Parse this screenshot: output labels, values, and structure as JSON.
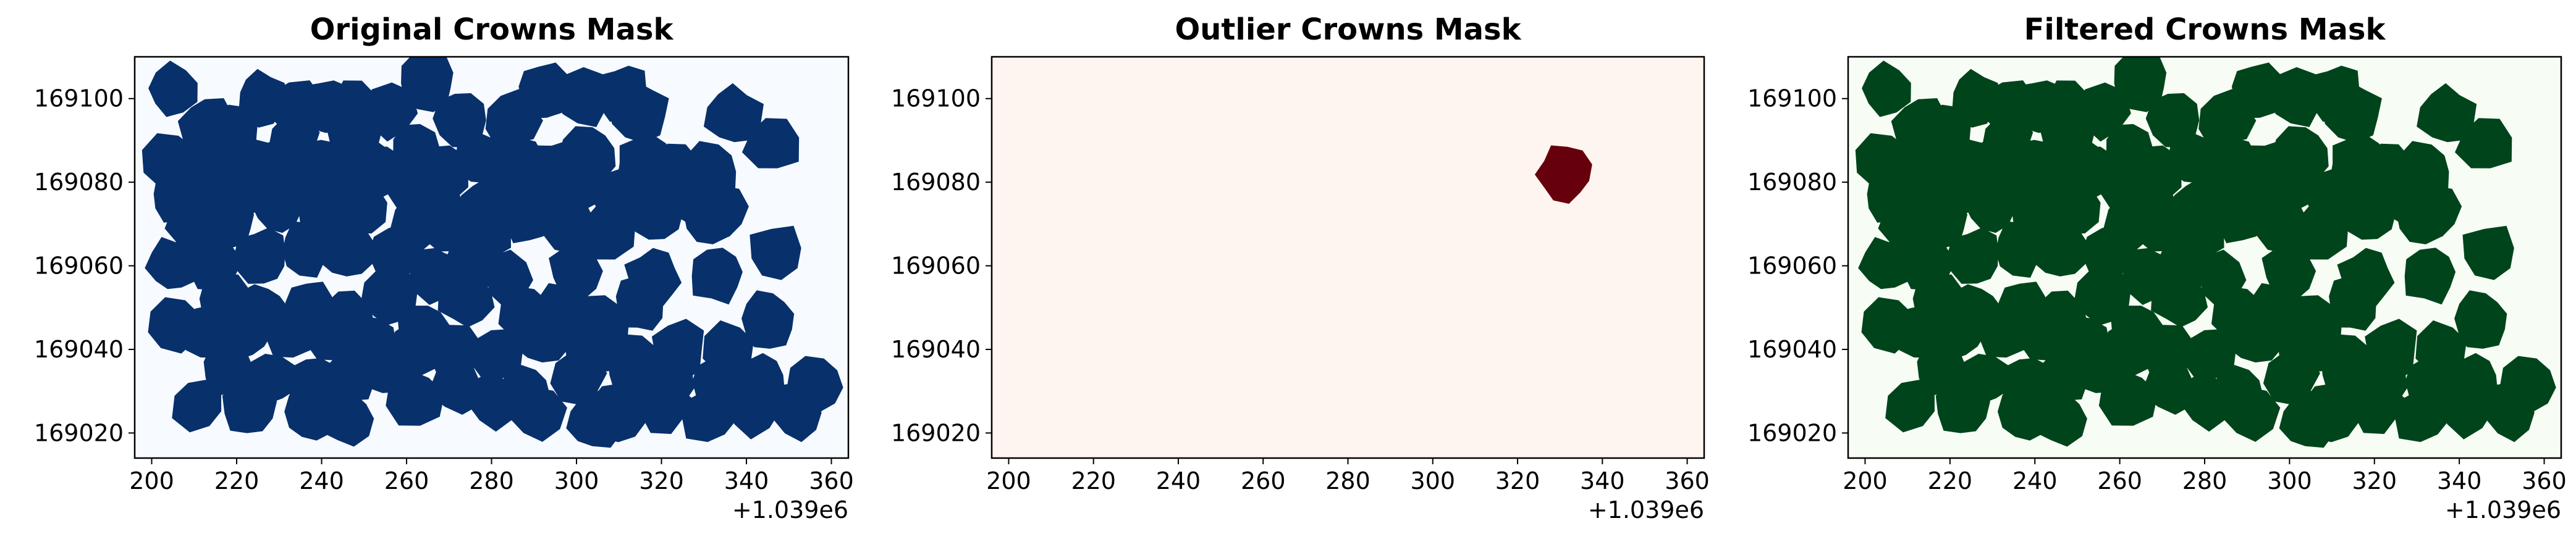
{
  "chart_data": [
    {
      "type": "heatmap",
      "title": "Original Crowns Mask",
      "colormap": "Blues",
      "background_color": "#f7fbff",
      "mask_color": "#08306b",
      "xlabel": "",
      "ylabel": "",
      "xlim": [
        196,
        364
      ],
      "ylim": [
        169014,
        169110
      ],
      "x_ticks": [
        200,
        220,
        240,
        260,
        280,
        300,
        320,
        340,
        360
      ],
      "y_ticks": [
        169020,
        169040,
        169060,
        169080,
        169100
      ],
      "x_offset_label": "+1.039e6",
      "crowns": [
        [
          205,
          169102
        ],
        [
          213,
          169094
        ],
        [
          219,
          169092
        ],
        [
          226,
          169100
        ],
        [
          234,
          169098
        ],
        [
          241,
          169098
        ],
        [
          248,
          169098
        ],
        [
          256,
          169097
        ],
        [
          265,
          169104
        ],
        [
          273,
          169095
        ],
        [
          285,
          169095
        ],
        [
          292,
          169102
        ],
        [
          302,
          169100
        ],
        [
          311,
          169101
        ],
        [
          315,
          169097
        ],
        [
          337,
          169096
        ],
        [
          346,
          169089
        ],
        [
          204,
          169085
        ],
        [
          212,
          169085
        ],
        [
          219,
          169084
        ],
        [
          226,
          169083
        ],
        [
          233,
          169090
        ],
        [
          240,
          169084
        ],
        [
          247,
          169092
        ],
        [
          254,
          169083
        ],
        [
          262,
          169088
        ],
        [
          269,
          169082
        ],
        [
          277,
          169086
        ],
        [
          287,
          169085
        ],
        [
          295,
          169083
        ],
        [
          303,
          169087
        ],
        [
          316,
          169084
        ],
        [
          323,
          169083
        ],
        [
          332,
          169083
        ],
        [
          206,
          169077
        ],
        [
          214,
          169077
        ],
        [
          222,
          169079
        ],
        [
          230,
          169084
        ],
        [
          238,
          169079
        ],
        [
          245,
          169081
        ],
        [
          252,
          169083
        ],
        [
          260,
          169081
        ],
        [
          268,
          169074
        ],
        [
          278,
          169074
        ],
        [
          285,
          169079
        ],
        [
          293,
          169079
        ],
        [
          302,
          169080
        ],
        [
          310,
          169076
        ],
        [
          318,
          169076
        ],
        [
          327,
          169077
        ],
        [
          334,
          169073
        ],
        [
          210,
          169069
        ],
        [
          218,
          169070
        ],
        [
          230,
          169074
        ],
        [
          240,
          169072
        ],
        [
          250,
          169073
        ],
        [
          262,
          169070
        ],
        [
          270,
          169070
        ],
        [
          279,
          169068
        ],
        [
          289,
          169072
        ],
        [
          299,
          169069
        ],
        [
          307,
          169068
        ],
        [
          318,
          169073
        ],
        [
          331,
          169071
        ],
        [
          205,
          169060
        ],
        [
          215,
          169060
        ],
        [
          226,
          169062
        ],
        [
          236,
          169064
        ],
        [
          246,
          169064
        ],
        [
          258,
          169063
        ],
        [
          266,
          169058
        ],
        [
          276,
          169061
        ],
        [
          284,
          169057
        ],
        [
          300,
          169059
        ],
        [
          318,
          169057
        ],
        [
          333,
          169058
        ],
        [
          347,
          169063
        ],
        [
          217,
          169052
        ],
        [
          226,
          169049
        ],
        [
          237,
          169050
        ],
        [
          246,
          169047
        ],
        [
          256,
          169053
        ],
        [
          264,
          169045
        ],
        [
          274,
          169052
        ],
        [
          288,
          169049
        ],
        [
          297,
          169049
        ],
        [
          306,
          169046
        ],
        [
          315,
          169051
        ],
        [
          205,
          169046
        ],
        [
          212,
          169044
        ],
        [
          222,
          169044
        ],
        [
          232,
          169044
        ],
        [
          242,
          169043
        ],
        [
          251,
          169041
        ],
        [
          262,
          169040
        ],
        [
          271,
          169040
        ],
        [
          281,
          169039
        ],
        [
          292,
          169043
        ],
        [
          303,
          169040
        ],
        [
          313,
          169036
        ],
        [
          324,
          169040
        ],
        [
          336,
          169040
        ],
        [
          345,
          169047
        ],
        [
          218,
          169035
        ],
        [
          228,
          169033
        ],
        [
          238,
          169032
        ],
        [
          247,
          169034
        ],
        [
          256,
          169035
        ],
        [
          272,
          169031
        ],
        [
          288,
          169030
        ],
        [
          300,
          169033
        ],
        [
          314,
          169028
        ],
        [
          322,
          169032
        ],
        [
          333,
          169032
        ],
        [
          343,
          169032
        ],
        [
          211,
          169027
        ],
        [
          223,
          169026
        ],
        [
          238,
          169025
        ],
        [
          246,
          169024
        ],
        [
          262,
          169028
        ],
        [
          280,
          169028
        ],
        [
          291,
          169025
        ],
        [
          304,
          169023
        ],
        [
          310,
          169025
        ],
        [
          320,
          169027
        ],
        [
          331,
          169024
        ],
        [
          342,
          169026
        ],
        [
          352,
          169025
        ],
        [
          356,
          169031
        ]
      ]
    },
    {
      "type": "heatmap",
      "title": "Outlier Crowns Mask",
      "colormap": "Reds",
      "background_color": "#fff5f0",
      "mask_color": "#67000d",
      "xlabel": "",
      "ylabel": "",
      "xlim": [
        196,
        364
      ],
      "ylim": [
        169014,
        169110
      ],
      "x_ticks": [
        200,
        220,
        240,
        260,
        280,
        300,
        320,
        340,
        360
      ],
      "y_ticks": [
        169020,
        169040,
        169060,
        169080,
        169100
      ],
      "x_offset_label": "+1.039e6",
      "crowns": [
        [
          331,
          169082
        ]
      ]
    },
    {
      "type": "heatmap",
      "title": "Filtered Crowns Mask",
      "colormap": "Greens",
      "background_color": "#f7fcf5",
      "mask_color": "#00441b",
      "xlabel": "",
      "ylabel": "",
      "xlim": [
        196,
        364
      ],
      "ylim": [
        169014,
        169110
      ],
      "x_ticks": [
        200,
        220,
        240,
        260,
        280,
        300,
        320,
        340,
        360
      ],
      "y_ticks": [
        169020,
        169040,
        169060,
        169080,
        169100
      ],
      "x_offset_label": "+1.039e6",
      "crowns": [
        [
          205,
          169102
        ],
        [
          213,
          169094
        ],
        [
          219,
          169092
        ],
        [
          226,
          169100
        ],
        [
          234,
          169098
        ],
        [
          241,
          169098
        ],
        [
          248,
          169098
        ],
        [
          256,
          169097
        ],
        [
          265,
          169104
        ],
        [
          273,
          169095
        ],
        [
          285,
          169095
        ],
        [
          292,
          169102
        ],
        [
          302,
          169100
        ],
        [
          311,
          169101
        ],
        [
          315,
          169097
        ],
        [
          337,
          169096
        ],
        [
          346,
          169089
        ],
        [
          204,
          169085
        ],
        [
          212,
          169085
        ],
        [
          219,
          169084
        ],
        [
          226,
          169083
        ],
        [
          233,
          169090
        ],
        [
          240,
          169084
        ],
        [
          247,
          169092
        ],
        [
          254,
          169083
        ],
        [
          262,
          169088
        ],
        [
          269,
          169082
        ],
        [
          277,
          169086
        ],
        [
          287,
          169085
        ],
        [
          295,
          169083
        ],
        [
          303,
          169087
        ],
        [
          316,
          169084
        ],
        [
          323,
          169083
        ],
        [
          332,
          169083
        ],
        [
          206,
          169077
        ],
        [
          214,
          169077
        ],
        [
          222,
          169079
        ],
        [
          230,
          169084
        ],
        [
          238,
          169079
        ],
        [
          245,
          169081
        ],
        [
          252,
          169083
        ],
        [
          260,
          169081
        ],
        [
          268,
          169074
        ],
        [
          278,
          169074
        ],
        [
          285,
          169079
        ],
        [
          293,
          169079
        ],
        [
          302,
          169080
        ],
        [
          310,
          169076
        ],
        [
          318,
          169076
        ],
        [
          327,
          169077
        ],
        [
          334,
          169073
        ],
        [
          210,
          169069
        ],
        [
          218,
          169070
        ],
        [
          230,
          169074
        ],
        [
          240,
          169072
        ],
        [
          250,
          169073
        ],
        [
          262,
          169070
        ],
        [
          270,
          169070
        ],
        [
          279,
          169068
        ],
        [
          289,
          169072
        ],
        [
          299,
          169069
        ],
        [
          307,
          169068
        ],
        [
          318,
          169073
        ],
        [
          331,
          169071
        ],
        [
          205,
          169060
        ],
        [
          215,
          169060
        ],
        [
          226,
          169062
        ],
        [
          236,
          169064
        ],
        [
          246,
          169064
        ],
        [
          258,
          169063
        ],
        [
          266,
          169058
        ],
        [
          276,
          169061
        ],
        [
          284,
          169057
        ],
        [
          300,
          169059
        ],
        [
          318,
          169057
        ],
        [
          333,
          169058
        ],
        [
          347,
          169063
        ],
        [
          217,
          169052
        ],
        [
          226,
          169049
        ],
        [
          237,
          169050
        ],
        [
          246,
          169047
        ],
        [
          256,
          169053
        ],
        [
          264,
          169045
        ],
        [
          274,
          169052
        ],
        [
          288,
          169049
        ],
        [
          297,
          169049
        ],
        [
          306,
          169046
        ],
        [
          315,
          169051
        ],
        [
          205,
          169046
        ],
        [
          212,
          169044
        ],
        [
          222,
          169044
        ],
        [
          232,
          169044
        ],
        [
          242,
          169043
        ],
        [
          251,
          169041
        ],
        [
          262,
          169040
        ],
        [
          271,
          169040
        ],
        [
          281,
          169039
        ],
        [
          292,
          169043
        ],
        [
          303,
          169040
        ],
        [
          313,
          169036
        ],
        [
          324,
          169040
        ],
        [
          336,
          169040
        ],
        [
          345,
          169047
        ],
        [
          218,
          169035
        ],
        [
          228,
          169033
        ],
        [
          238,
          169032
        ],
        [
          247,
          169034
        ],
        [
          256,
          169035
        ],
        [
          272,
          169031
        ],
        [
          288,
          169030
        ],
        [
          300,
          169033
        ],
        [
          314,
          169028
        ],
        [
          322,
          169032
        ],
        [
          333,
          169032
        ],
        [
          343,
          169032
        ],
        [
          211,
          169027
        ],
        [
          223,
          169026
        ],
        [
          238,
          169025
        ],
        [
          246,
          169024
        ],
        [
          262,
          169028
        ],
        [
          280,
          169028
        ],
        [
          291,
          169025
        ],
        [
          304,
          169023
        ],
        [
          310,
          169025
        ],
        [
          320,
          169027
        ],
        [
          331,
          169024
        ],
        [
          342,
          169026
        ],
        [
          352,
          169025
        ],
        [
          356,
          169031
        ]
      ]
    }
  ]
}
